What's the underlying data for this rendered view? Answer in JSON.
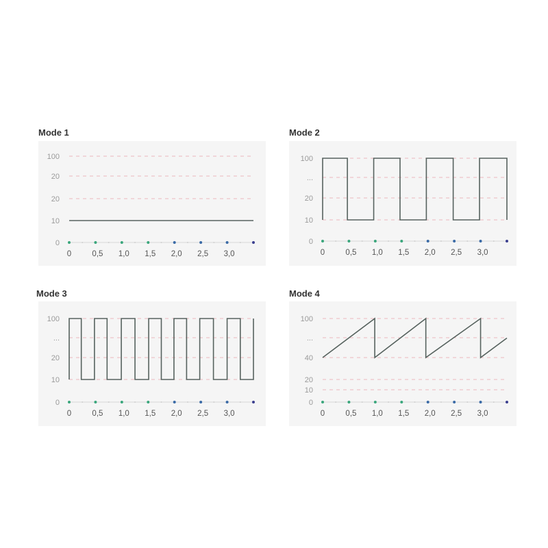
{
  "chart_data": [
    {
      "type": "line",
      "title": "Mode 1",
      "x_ticks": [
        "0",
        "0,5",
        "1,0",
        "1,5",
        "2,0",
        "2,5",
        "3,0"
      ],
      "x_range": [
        0,
        3.5
      ],
      "y_ticks": [
        "100",
        "20",
        "20",
        "10",
        "0"
      ],
      "grid": "dashed horizontal",
      "series": [
        {
          "points": [
            [
              0,
              10
            ],
            [
              3.5,
              10
            ]
          ]
        }
      ]
    },
    {
      "type": "line",
      "title": "Mode 2",
      "x_ticks": [
        "0",
        "0,5",
        "1,0",
        "1,5",
        "2,0",
        "2,5",
        "3,0"
      ],
      "x_range": [
        0,
        3.5
      ],
      "y_ticks": [
        "100",
        "...",
        "20",
        "10",
        "0"
      ],
      "grid": "dashed horizontal",
      "series": [
        {
          "points": [
            [
              0,
              10
            ],
            [
              0,
              100
            ],
            [
              0.47,
              100
            ],
            [
              0.47,
              10
            ],
            [
              0.97,
              10
            ],
            [
              0.97,
              100
            ],
            [
              1.47,
              100
            ],
            [
              1.47,
              10
            ],
            [
              1.97,
              10
            ],
            [
              1.97,
              100
            ],
            [
              2.48,
              100
            ],
            [
              2.48,
              10
            ],
            [
              2.98,
              10
            ],
            [
              2.98,
              100
            ],
            [
              3.5,
              100
            ],
            [
              3.5,
              10
            ]
          ]
        }
      ]
    },
    {
      "type": "line",
      "title": "Mode 3",
      "x_ticks": [
        "0",
        "0,5",
        "1,0",
        "1,5",
        "2,0",
        "2,5",
        "3,0"
      ],
      "x_range": [
        0,
        3.5
      ],
      "y_ticks": [
        "100",
        "...",
        "20",
        "10",
        "0"
      ],
      "grid": "dashed horizontal",
      "series": [
        {
          "points": [
            [
              0,
              10
            ],
            [
              0,
              100
            ],
            [
              0.23,
              100
            ],
            [
              0.23,
              10
            ],
            [
              0.48,
              10
            ],
            [
              0.48,
              100
            ],
            [
              0.72,
              100
            ],
            [
              0.72,
              10
            ],
            [
              0.99,
              10
            ],
            [
              0.99,
              100
            ],
            [
              1.25,
              100
            ],
            [
              1.25,
              10
            ],
            [
              1.51,
              10
            ],
            [
              1.51,
              100
            ],
            [
              1.75,
              100
            ],
            [
              1.75,
              10
            ],
            [
              1.99,
              10
            ],
            [
              1.99,
              100
            ],
            [
              2.23,
              100
            ],
            [
              2.23,
              10
            ],
            [
              2.48,
              10
            ],
            [
              2.48,
              100
            ],
            [
              2.74,
              100
            ],
            [
              2.74,
              10
            ],
            [
              3.0,
              10
            ],
            [
              3.0,
              100
            ],
            [
              3.25,
              100
            ],
            [
              3.25,
              10
            ],
            [
              3.5,
              10
            ],
            [
              3.5,
              100
            ]
          ]
        }
      ]
    },
    {
      "type": "line",
      "title": "Mode 4",
      "x_ticks": [
        "0",
        "0,5",
        "1,0",
        "1,5",
        "2,0",
        "2,5",
        "3,0"
      ],
      "x_range": [
        0,
        3.5
      ],
      "y_ticks": [
        "100",
        "...",
        "40",
        "20",
        "10",
        "0"
      ],
      "grid": "dashed horizontal",
      "series": [
        {
          "points": [
            [
              0,
              40
            ],
            [
              0.99,
              100
            ],
            [
              0.99,
              40
            ],
            [
              1.96,
              100
            ],
            [
              1.96,
              40
            ],
            [
              3.0,
              100
            ],
            [
              3.0,
              40
            ],
            [
              3.5,
              70
            ]
          ]
        }
      ]
    }
  ],
  "colors": {
    "line": "#56625e",
    "grid": "#e8a4aa",
    "panel_bg": "#f5f5f5",
    "axis": "#d8d8d8",
    "dot_green": "#3aa67c",
    "dot_blue": "#3a6aa6",
    "dot_last": "#3b3f8f"
  }
}
